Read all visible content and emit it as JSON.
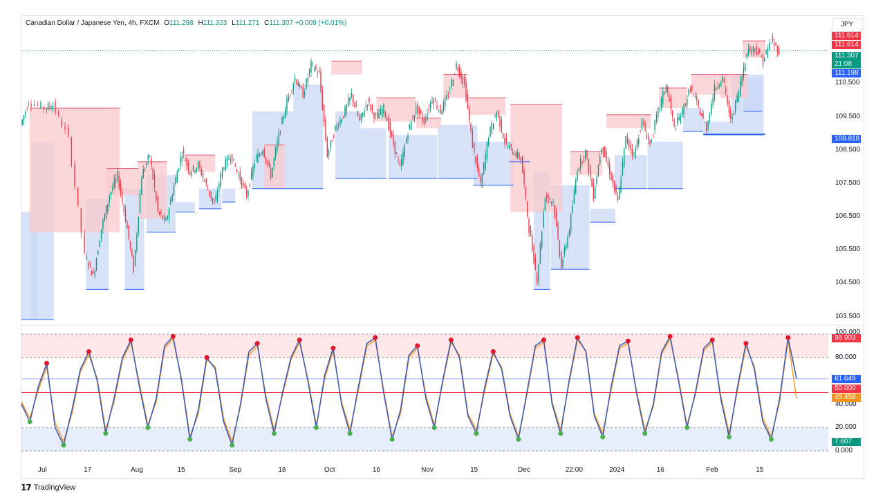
{
  "header": {
    "symbol": "Canadian Dollar / Japanese Yen, 4h, FXCM",
    "open_label": "O",
    "open": "111.298",
    "high_label": "H",
    "high": "111.323",
    "low_label": "L",
    "low": "111.271",
    "close_label": "C",
    "close": "111.307",
    "change": "+0.009 (+0.01%)"
  },
  "currency": "JPY",
  "price_tags": {
    "high1": "111.614",
    "high2": "111.614",
    "last": "111.307",
    "countdown": "21:08",
    "blue": "111.198",
    "support": "108.818"
  },
  "osc_tags": {
    "top": "96.903",
    "blue": "61.649",
    "red": "50.000",
    "orange": "45.459",
    "bottom": "7.607"
  },
  "brand": {
    "name": "TradingView"
  },
  "colors": {
    "up": "#089981",
    "down": "#f23645",
    "supply": "#f9c9cc",
    "demand": "#c9d8f7",
    "osc_main": "#3f5cb0",
    "osc_signal": "#f7931a",
    "mid_line": "#f23645",
    "blue_line": "#2962ff"
  },
  "chart_data": [
    {
      "type": "candlestick",
      "title": "Canadian Dollar / Japanese Yen, 4h, FXCM",
      "ylim": [
        103.3,
        112.2
      ],
      "yticks": [
        "110.500",
        "109.500",
        "108.500",
        "107.500",
        "106.500",
        "105.500",
        "104.500",
        "103.500"
      ],
      "ytick_values": [
        110.5,
        109.5,
        108.5,
        107.5,
        106.5,
        105.5,
        104.5,
        103.5
      ],
      "xticks": [
        "Jul",
        "17",
        "Aug",
        "15",
        "Sep",
        "18",
        "Oct",
        "16",
        "Nov",
        "15",
        "Dec",
        "22:00",
        "2024",
        "16",
        "Feb",
        "15"
      ],
      "x_range": [
        0,
        100
      ],
      "xtick_positions": [
        2.6,
        8.2,
        14.3,
        19.8,
        26.5,
        32.3,
        38.2,
        44.0,
        50.3,
        56.1,
        62.3,
        68.5,
        73.8,
        79.2,
        85.6,
        91.5
      ],
      "price_path": [
        [
          0,
          109.1
        ],
        [
          1,
          109.8
        ],
        [
          3,
          109.6
        ],
        [
          4,
          109.7
        ],
        [
          6,
          108.7
        ],
        [
          8,
          105.2
        ],
        [
          9,
          104.6
        ],
        [
          10,
          106.0
        ],
        [
          11,
          107.0
        ],
        [
          12,
          107.6
        ],
        [
          13,
          106.3
        ],
        [
          14,
          104.8
        ],
        [
          15,
          107.6
        ],
        [
          16,
          108.2
        ],
        [
          17,
          106.5
        ],
        [
          18,
          106.2
        ],
        [
          19,
          107.3
        ],
        [
          20,
          108.3
        ],
        [
          21,
          107.7
        ],
        [
          22,
          107.9
        ],
        [
          23,
          107.3
        ],
        [
          24,
          106.7
        ],
        [
          25,
          107.8
        ],
        [
          26,
          108.2
        ],
        [
          27,
          107.6
        ],
        [
          28,
          107.0
        ],
        [
          29,
          108.0
        ],
        [
          30,
          108.4
        ],
        [
          31,
          107.6
        ],
        [
          32,
          108.8
        ],
        [
          33,
          109.8
        ],
        [
          34,
          110.5
        ],
        [
          35,
          110.0
        ],
        [
          36,
          110.9
        ],
        [
          37,
          110.6
        ],
        [
          38,
          108.2
        ],
        [
          39,
          109.0
        ],
        [
          40,
          109.4
        ],
        [
          41,
          110.0
        ],
        [
          42,
          109.2
        ],
        [
          43,
          109.8
        ],
        [
          44,
          109.3
        ],
        [
          45,
          109.6
        ],
        [
          46,
          108.7
        ],
        [
          47,
          107.8
        ],
        [
          48,
          108.9
        ],
        [
          49,
          109.6
        ],
        [
          50,
          109.2
        ],
        [
          51,
          109.9
        ],
        [
          52,
          109.5
        ],
        [
          53,
          110.0
        ],
        [
          54,
          110.9
        ],
        [
          55,
          110.3
        ],
        [
          56,
          108.5
        ],
        [
          57,
          107.3
        ],
        [
          58,
          108.8
        ],
        [
          59,
          109.5
        ],
        [
          60,
          108.6
        ],
        [
          61,
          108.3
        ],
        [
          62,
          108.1
        ],
        [
          63,
          106.0
        ],
        [
          64,
          104.5
        ],
        [
          65,
          107.0
        ],
        [
          66,
          106.8
        ],
        [
          67,
          104.9
        ],
        [
          68,
          106.0
        ],
        [
          69,
          107.8
        ],
        [
          70,
          108.3
        ],
        [
          71,
          107.0
        ],
        [
          72,
          108.5
        ],
        [
          73,
          107.7
        ],
        [
          74,
          106.8
        ],
        [
          75,
          108.7
        ],
        [
          76,
          108.2
        ],
        [
          77,
          109.2
        ],
        [
          78,
          108.5
        ],
        [
          79,
          109.5
        ],
        [
          80,
          110.3
        ],
        [
          81,
          109.0
        ],
        [
          82,
          109.5
        ],
        [
          83,
          110.2
        ],
        [
          84,
          109.6
        ],
        [
          85,
          109.0
        ],
        [
          86,
          110.2
        ],
        [
          87,
          110.5
        ],
        [
          88,
          109.2
        ],
        [
          89,
          110.1
        ],
        [
          90,
          111.3
        ],
        [
          91,
          111.4
        ],
        [
          92,
          111.0
        ],
        [
          93,
          111.6
        ],
        [
          94,
          111.3
        ]
      ],
      "last_price": 111.307,
      "supply_zones": [
        [
          1.0,
          12.2,
          109.6,
          105.9
        ],
        [
          10.6,
          14.5,
          107.8,
          107.0
        ],
        [
          14.4,
          18.0,
          108.0,
          106.3
        ],
        [
          20.2,
          24.0,
          108.2,
          107.7
        ],
        [
          30.1,
          32.6,
          108.5,
          107.2
        ],
        [
          38.4,
          42.2,
          111.0,
          110.6
        ],
        [
          44.0,
          48.8,
          109.9,
          109.2
        ],
        [
          48.9,
          52.0,
          109.3,
          109.0
        ],
        [
          52.3,
          55.2,
          110.6,
          109.9
        ],
        [
          55.4,
          60.0,
          109.9,
          109.4
        ],
        [
          60.6,
          67.0,
          109.7,
          106.5
        ],
        [
          68.0,
          72.0,
          108.3,
          107.6
        ],
        [
          72.5,
          78.0,
          109.4,
          109.0
        ],
        [
          79.0,
          82.5,
          110.2,
          109.6
        ],
        [
          83.0,
          87.5,
          110.6,
          110.0
        ],
        [
          86.6,
          90.0,
          110.6,
          109.9
        ],
        [
          89.4,
          92.2,
          111.6,
          111.1
        ]
      ],
      "demand_zones": [
        [
          0.0,
          2.0,
          106.5,
          103.3
        ],
        [
          1.2,
          4.0,
          108.6,
          103.3
        ],
        [
          8.0,
          10.8,
          106.9,
          104.2
        ],
        [
          12.8,
          15.2,
          107.2,
          104.2
        ],
        [
          15.5,
          19.1,
          107.6,
          105.9
        ],
        [
          19.1,
          21.5,
          106.8,
          106.5
        ],
        [
          22.0,
          24.8,
          107.2,
          106.6
        ],
        [
          24.9,
          26.5,
          107.2,
          106.8
        ],
        [
          28.6,
          33.7,
          109.5,
          107.2
        ],
        [
          33.7,
          37.4,
          110.3,
          107.2
        ],
        [
          38.9,
          42.0,
          109.5,
          107.5
        ],
        [
          42.0,
          45.2,
          109.0,
          107.5
        ],
        [
          45.5,
          51.5,
          108.8,
          107.5
        ],
        [
          51.6,
          56.5,
          109.1,
          107.5
        ],
        [
          56.0,
          61.0,
          108.6,
          107.3
        ],
        [
          60.5,
          63.0,
          108.1,
          108.0
        ],
        [
          63.5,
          65.5,
          107.7,
          104.2
        ],
        [
          65.6,
          70.4,
          107.3,
          104.8
        ],
        [
          70.5,
          73.6,
          106.6,
          106.2
        ],
        [
          73.5,
          77.5,
          108.2,
          107.2
        ],
        [
          77.6,
          82.0,
          108.6,
          107.2
        ],
        [
          82.0,
          84.5,
          109.6,
          108.9
        ],
        [
          84.5,
          88.0,
          109.2,
          108.8
        ],
        [
          88.0,
          92.0,
          110.6,
          108.8
        ],
        [
          89.5,
          91.8,
          110.5,
          109.5
        ]
      ],
      "support_level": 108.818
    },
    {
      "type": "line",
      "title": "Oscillator",
      "ylim": [
        0,
        100
      ],
      "yticks": [
        "100.000",
        "80.000",
        "40.000",
        "20.000",
        "0.000"
      ],
      "ytick_values": [
        100,
        80,
        40,
        20,
        0
      ],
      "levels": {
        "upper": 80,
        "mid": 50,
        "lower": 20
      },
      "series": [
        {
          "values": [
            40,
            25,
            55,
            75,
            20,
            5,
            35,
            70,
            85,
            60,
            15,
            45,
            80,
            95,
            55,
            20,
            45,
            90,
            98,
            60,
            10,
            35,
            80,
            70,
            25,
            5,
            40,
            85,
            92,
            45,
            15,
            50,
            80,
            95,
            60,
            20,
            65,
            88,
            40,
            15,
            55,
            92,
            97,
            50,
            10,
            35,
            82,
            90,
            45,
            20,
            60,
            95,
            80,
            30,
            15,
            55,
            85,
            70,
            30,
            10,
            50,
            90,
            95,
            40,
            15,
            60,
            97,
            85,
            30,
            12,
            55,
            90,
            94,
            50,
            15,
            40,
            85,
            98,
            60,
            20,
            50,
            88,
            95,
            45,
            12,
            55,
            92,
            70,
            25,
            10,
            45,
            97,
            62
          ]
        },
        {
          "values": [
            42,
            28,
            52,
            72,
            24,
            8,
            32,
            68,
            82,
            62,
            18,
            42,
            78,
            93,
            58,
            22,
            42,
            88,
            96,
            62,
            12,
            32,
            78,
            72,
            28,
            8,
            38,
            82,
            90,
            48,
            18,
            48,
            78,
            93,
            62,
            22,
            62,
            86,
            42,
            18,
            52,
            90,
            95,
            52,
            12,
            32,
            80,
            88,
            48,
            22,
            58,
            93,
            82,
            32,
            18,
            52,
            83,
            72,
            32,
            12,
            48,
            88,
            93,
            42,
            18,
            58,
            95,
            86,
            32,
            15,
            52,
            88,
            92,
            52,
            18,
            38,
            83,
            96,
            62,
            22,
            48,
            86,
            93,
            48,
            15,
            52,
            90,
            72,
            28,
            12,
            42,
            95,
            45
          ]
        }
      ]
    }
  ]
}
